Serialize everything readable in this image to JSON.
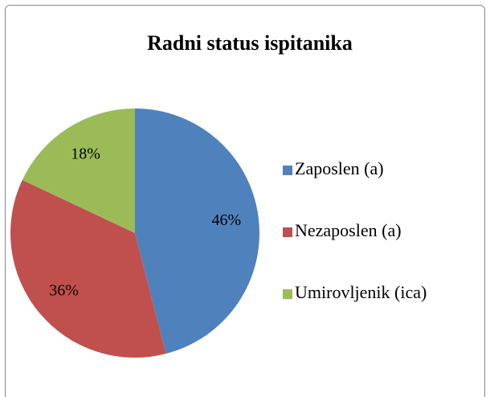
{
  "chart_data": {
    "type": "pie",
    "title": "Radni status ispitanika",
    "categories": [
      "Zaposlen (a)",
      "Nezaposlen (a)",
      "Umirovljenik (ica)"
    ],
    "values": [
      46,
      36,
      18
    ],
    "value_labels": [
      "46%",
      "36%",
      "18%"
    ],
    "colors": [
      "#4f81bd",
      "#c0504d",
      "#9bbb59"
    ],
    "legend": "right"
  }
}
